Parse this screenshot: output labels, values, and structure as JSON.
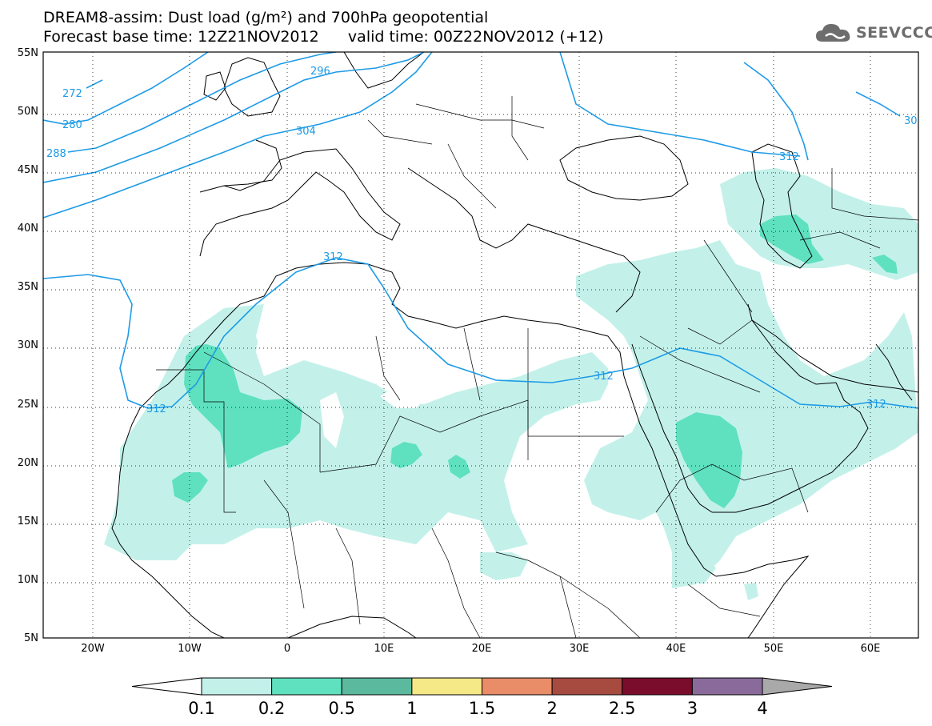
{
  "title": {
    "line1": "DREAM8-assim: Dust load (g/m²) and 700hPa geopotential",
    "line2": "Forecast base time: 12Z21NOV2012      valid time: 00Z22NOV2012 (+12)"
  },
  "logo": {
    "text": "SEEVCCC",
    "icon": "cloud-logo-icon"
  },
  "map": {
    "lat_labels": [
      "55N",
      "50N",
      "45N",
      "40N",
      "35N",
      "30N",
      "25N",
      "20N",
      "15N",
      "10N",
      "5N"
    ],
    "lon_labels": [
      "20W",
      "10W",
      "0",
      "10E",
      "20E",
      "30E",
      "40E",
      "50E",
      "60E"
    ],
    "contour_labels": [
      "272",
      "280",
      "288",
      "296",
      "304",
      "312",
      "312",
      "312",
      "312",
      "312",
      "30"
    ]
  },
  "legend": {
    "colors": [
      "#ffffff",
      "#c3f1ea",
      "#5fe1c0",
      "#5bb99e",
      "#f5e887",
      "#e98c68",
      "#a74a40",
      "#7a0c2c",
      "#8a6a9b",
      "#a9a9a9"
    ],
    "labels": [
      "0.1",
      "0.2",
      "0.5",
      "1",
      "1.5",
      "2",
      "2.5",
      "3",
      "4"
    ]
  }
}
